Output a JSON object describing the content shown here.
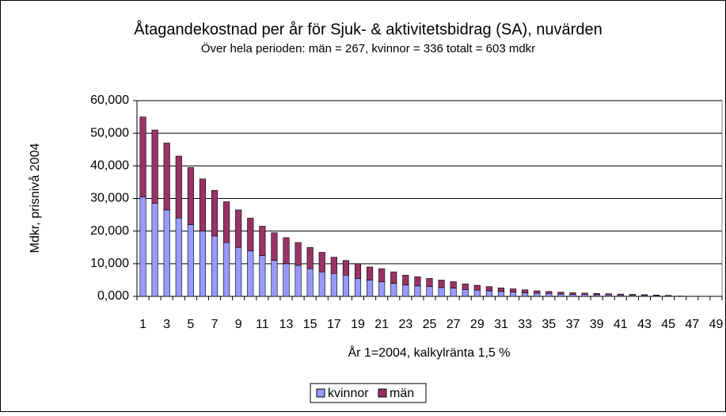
{
  "chart_data": {
    "type": "stacked_bar",
    "title": "Åtagandekostnad per år för Sjuk- & aktivitetsbidrag (SA), nuvärden",
    "subtitle": "Över hela perioden: män = 267, kvinnor = 336  totalt = 603 mdkr",
    "x_label": "År 1=2004, kalkylränta 1,5 %",
    "y_label": "Mdkr, prisnivå 2004",
    "categories": [
      1,
      null,
      3,
      null,
      5,
      null,
      7,
      null,
      9,
      null,
      11,
      null,
      13,
      null,
      15,
      null,
      17,
      null,
      19,
      null,
      21,
      null,
      23,
      null,
      25,
      null,
      27,
      null,
      29,
      null,
      31,
      null,
      33,
      null,
      35,
      null,
      37,
      null,
      39,
      null,
      41,
      null,
      43,
      null,
      45,
      null,
      47,
      null,
      49
    ],
    "series": [
      {
        "name": "kvinnor",
        "color": "#9999ff",
        "values": [
          30.5,
          28.5,
          26.5,
          24,
          22,
          20,
          18.5,
          16.5,
          15,
          14,
          12.5,
          11,
          10,
          9.5,
          8.5,
          7.5,
          7,
          6.5,
          5.5,
          5,
          4.5,
          4,
          3.5,
          3.2,
          3,
          2.7,
          2.5,
          2.1,
          1.9,
          1.7,
          1.5,
          1.3,
          1.1,
          1,
          0.9,
          0.7,
          0.6,
          0.55,
          0.5,
          0.45,
          0.4,
          0.35,
          0.3,
          0.25,
          0.2,
          0.05,
          0,
          0,
          0
        ]
      },
      {
        "name": "män",
        "color": "#993366",
        "values": [
          24.5,
          22.5,
          20.5,
          19,
          17.5,
          16,
          14,
          12.5,
          11.5,
          10,
          9,
          8.5,
          8,
          7,
          6.5,
          6,
          5,
          4.5,
          4.5,
          4,
          4,
          3.5,
          3,
          2.8,
          2.5,
          2.3,
          2,
          1.7,
          1.5,
          1.3,
          1.1,
          1,
          0.9,
          0.7,
          0.6,
          0.6,
          0.5,
          0.45,
          0.4,
          0.35,
          0.3,
          0.25,
          0.2,
          0.15,
          0.1,
          0.05,
          0,
          0,
          0
        ]
      }
    ],
    "ylim": [
      0,
      60
    ],
    "yticks": [
      {
        "value": 0,
        "label": "0,000"
      },
      {
        "value": 10,
        "label": "10,000"
      },
      {
        "value": 20,
        "label": "20,000"
      },
      {
        "value": 30,
        "label": "30,000"
      },
      {
        "value": 40,
        "label": "40,000"
      },
      {
        "value": 50,
        "label": "50,000"
      },
      {
        "value": 60,
        "label": "60,000"
      }
    ],
    "grid": true,
    "legend": "bottom"
  }
}
